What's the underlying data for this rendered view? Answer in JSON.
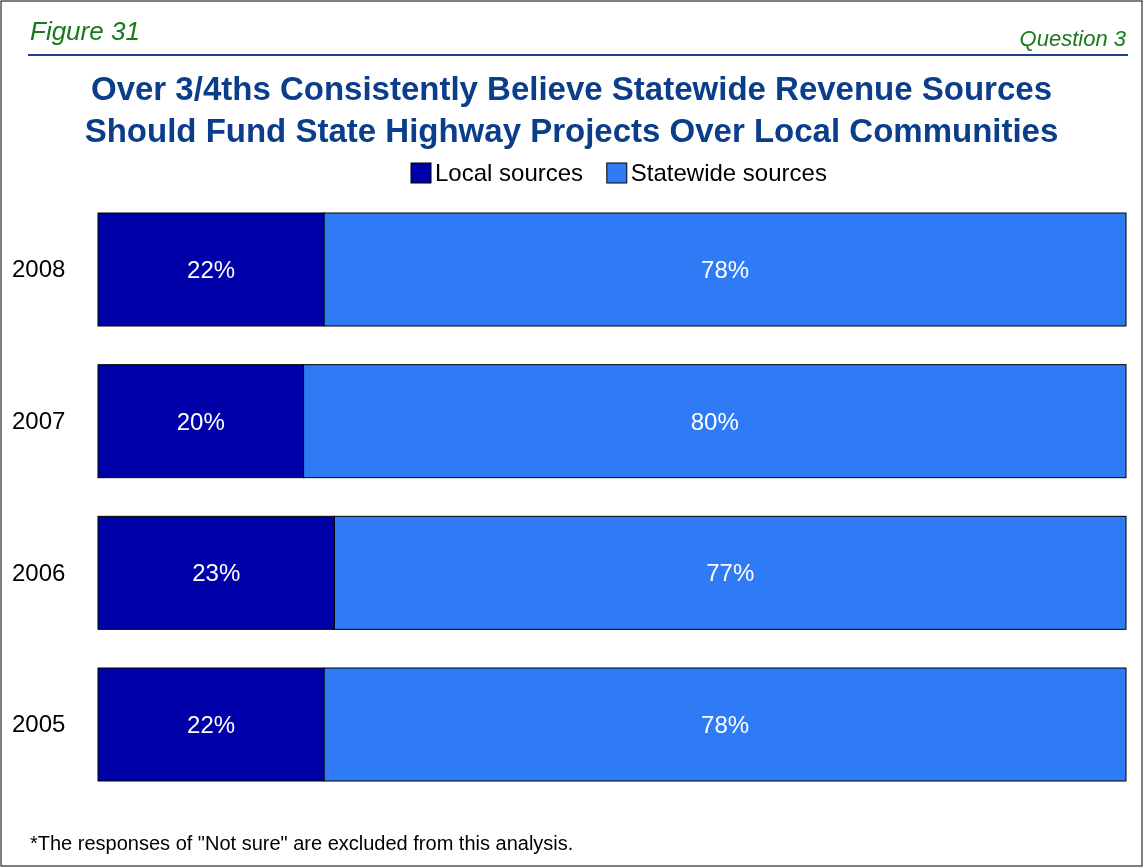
{
  "chart_data": {
    "type": "bar",
    "orientation": "horizontal",
    "stacked": true,
    "title": "Over 3/4ths Consistently Believe Statewide Revenue Sources\nShould Fund State Highway Projects Over Local Communities",
    "categories": [
      "2008",
      "2007",
      "2006",
      "2005"
    ],
    "series": [
      {
        "name": "Local sources",
        "color": "#0000a8",
        "values": [
          22,
          20,
          23,
          22
        ],
        "value_labels": [
          "22%",
          "20%",
          "23%",
          "22%"
        ]
      },
      {
        "name": "Statewide sources",
        "color": "#2f7bf5",
        "values": [
          78,
          80,
          77,
          78
        ],
        "value_labels": [
          "78%",
          "80%",
          "77%",
          "78%"
        ]
      }
    ],
    "legend": "top",
    "annotations": [
      "Figure 31",
      "Question 3",
      "*The responses of \"Not sure\" are excluded from this analysis."
    ]
  }
}
